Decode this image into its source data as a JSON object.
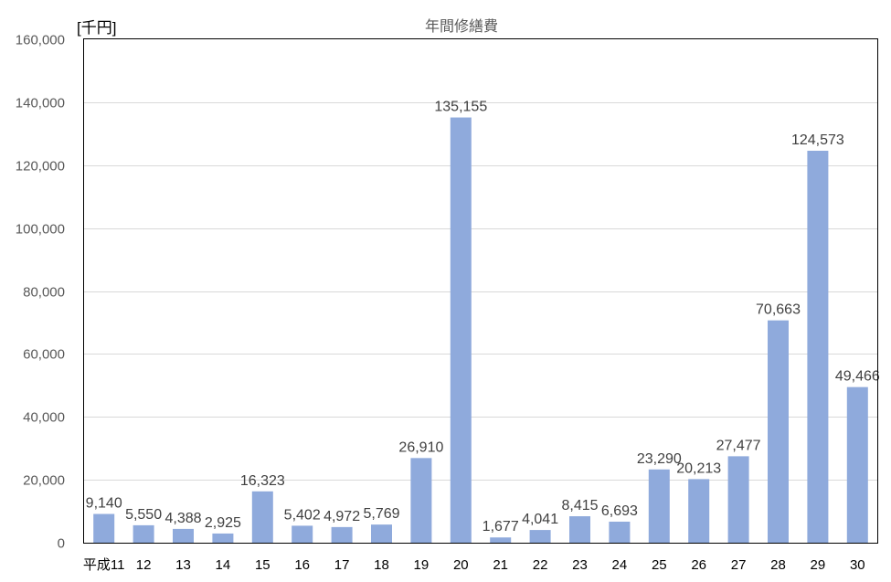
{
  "chart_data": {
    "type": "bar",
    "title": "年間修繕費",
    "unit_label": "[千円]",
    "ylim": [
      0,
      160000
    ],
    "yticks": [
      0,
      20000,
      40000,
      60000,
      80000,
      100000,
      120000,
      140000,
      160000
    ],
    "ytick_labels": [
      "0",
      "20,000",
      "40,000",
      "60,000",
      "80,000",
      "100,000",
      "120,000",
      "140,000",
      "160,000"
    ],
    "categories": [
      "平成11",
      "12",
      "13",
      "14",
      "15",
      "16",
      "17",
      "18",
      "19",
      "20",
      "21",
      "22",
      "23",
      "24",
      "25",
      "26",
      "27",
      "28",
      "29",
      "30"
    ],
    "values": [
      9140,
      5550,
      4388,
      2925,
      16323,
      5402,
      4972,
      5769,
      26910,
      135155,
      1677,
      4041,
      8415,
      6693,
      23290,
      20213,
      27477,
      70663,
      124573,
      49466
    ],
    "value_labels": [
      "9,140",
      "5,550",
      "4,388",
      "2,925",
      "16,323",
      "5,402",
      "4,972",
      "5,769",
      "26,910",
      "135,155",
      "1,677",
      "4,041",
      "8,415",
      "6,693",
      "23,290",
      "20,213",
      "27,477",
      "70,663",
      "124,573",
      "49,466"
    ],
    "bar_color": "#8faadc",
    "grid": true,
    "legend": "none"
  }
}
